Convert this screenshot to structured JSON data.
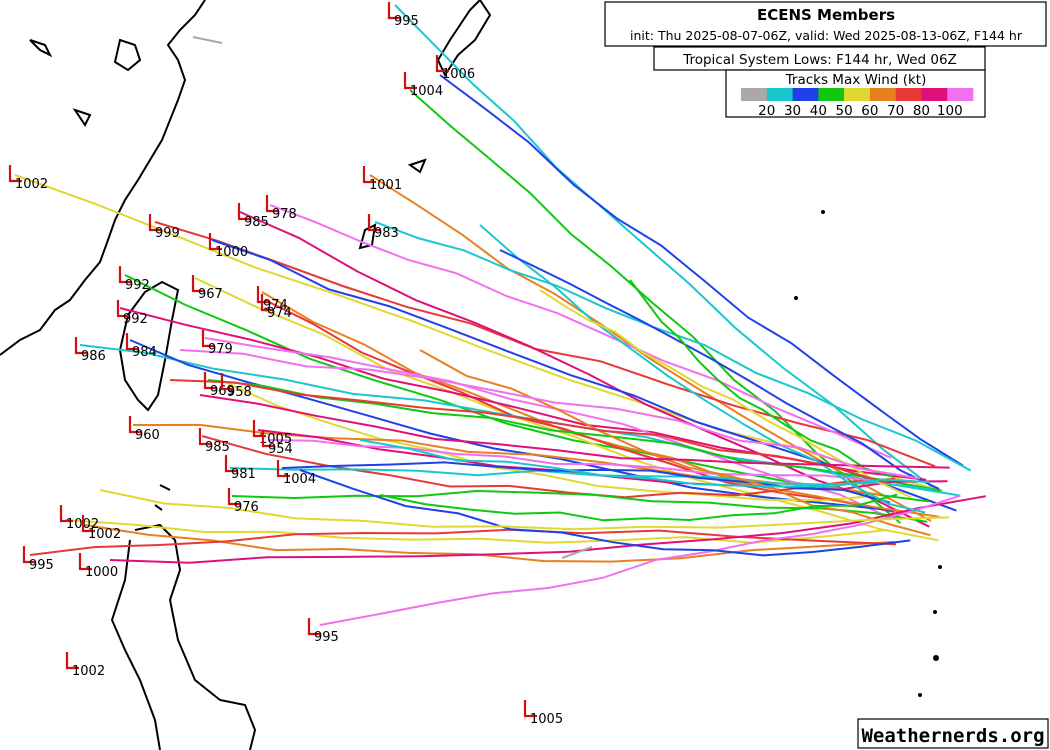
{
  "header": {
    "title": "ECENS Members",
    "subtitle": "init: Thu 2025-08-07-06Z, valid: Wed 2025-08-13-06Z, F144 hr",
    "lows_caption": "Tropical System Lows: F144 hr, Wed 06Z"
  },
  "legend": {
    "title": "Tracks Max Wind (kt)",
    "labels": [
      20,
      30,
      40,
      50,
      60,
      70,
      80,
      100
    ],
    "colors": [
      "#a8a8a8",
      "#19c8cc",
      "#2040e8",
      "#10c810",
      "#e0d830",
      "#e88020",
      "#e83838",
      "#e0107a",
      "#f070f0"
    ]
  },
  "pressure_labels": [
    995,
    1006,
    1004,
    1002,
    1001,
    999,
    985,
    978,
    983,
    1000,
    992,
    967,
    974,
    974,
    992,
    979,
    986,
    984,
    969,
    958,
    960,
    985,
    1005,
    954,
    981,
    1004,
    976,
    1002,
    1002,
    995,
    1000,
    995,
    1002,
    1005
  ],
  "watermark": "Weathernerds.org"
}
